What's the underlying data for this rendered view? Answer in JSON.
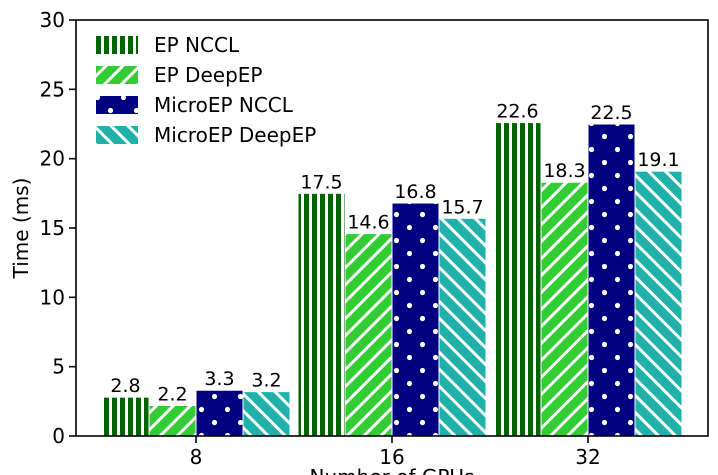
{
  "chart_data": {
    "type": "bar",
    "title": "",
    "xlabel": "Number of GPUs",
    "ylabel": "Time (ms)",
    "categories": [
      "8",
      "16",
      "32"
    ],
    "ylim": [
      0,
      30
    ],
    "yticks": [
      0,
      5,
      10,
      15,
      20,
      25,
      30
    ],
    "grid": false,
    "legend_position": "top-left",
    "series": [
      {
        "name": "EP NCCL",
        "values": [
          2.8,
          17.5,
          22.6
        ],
        "labels": [
          "2.8",
          "17.5",
          "22.6"
        ],
        "color": "#006400",
        "pattern_color": "#ffffff",
        "pattern": "vertical-lines"
      },
      {
        "name": "EP DeepEP",
        "values": [
          2.2,
          14.6,
          18.3
        ],
        "labels": [
          "2.2",
          "14.6",
          "18.3"
        ],
        "color": "#32cd32",
        "pattern_color": "#ffffff",
        "pattern": "diagonal-lines"
      },
      {
        "name": "MicroEP NCCL",
        "values": [
          3.3,
          16.8,
          22.5
        ],
        "labels": [
          "3.3",
          "16.8",
          "22.5"
        ],
        "color": "#000080",
        "pattern_color": "#ffffff",
        "pattern": "dots"
      },
      {
        "name": "MicroEP DeepEP",
        "values": [
          3.2,
          15.7,
          19.1
        ],
        "labels": [
          "3.2",
          "15.7",
          "19.1"
        ],
        "color": "#20b2aa",
        "pattern_color": "#ffffff",
        "pattern": "back-diagonal-lines"
      }
    ]
  }
}
